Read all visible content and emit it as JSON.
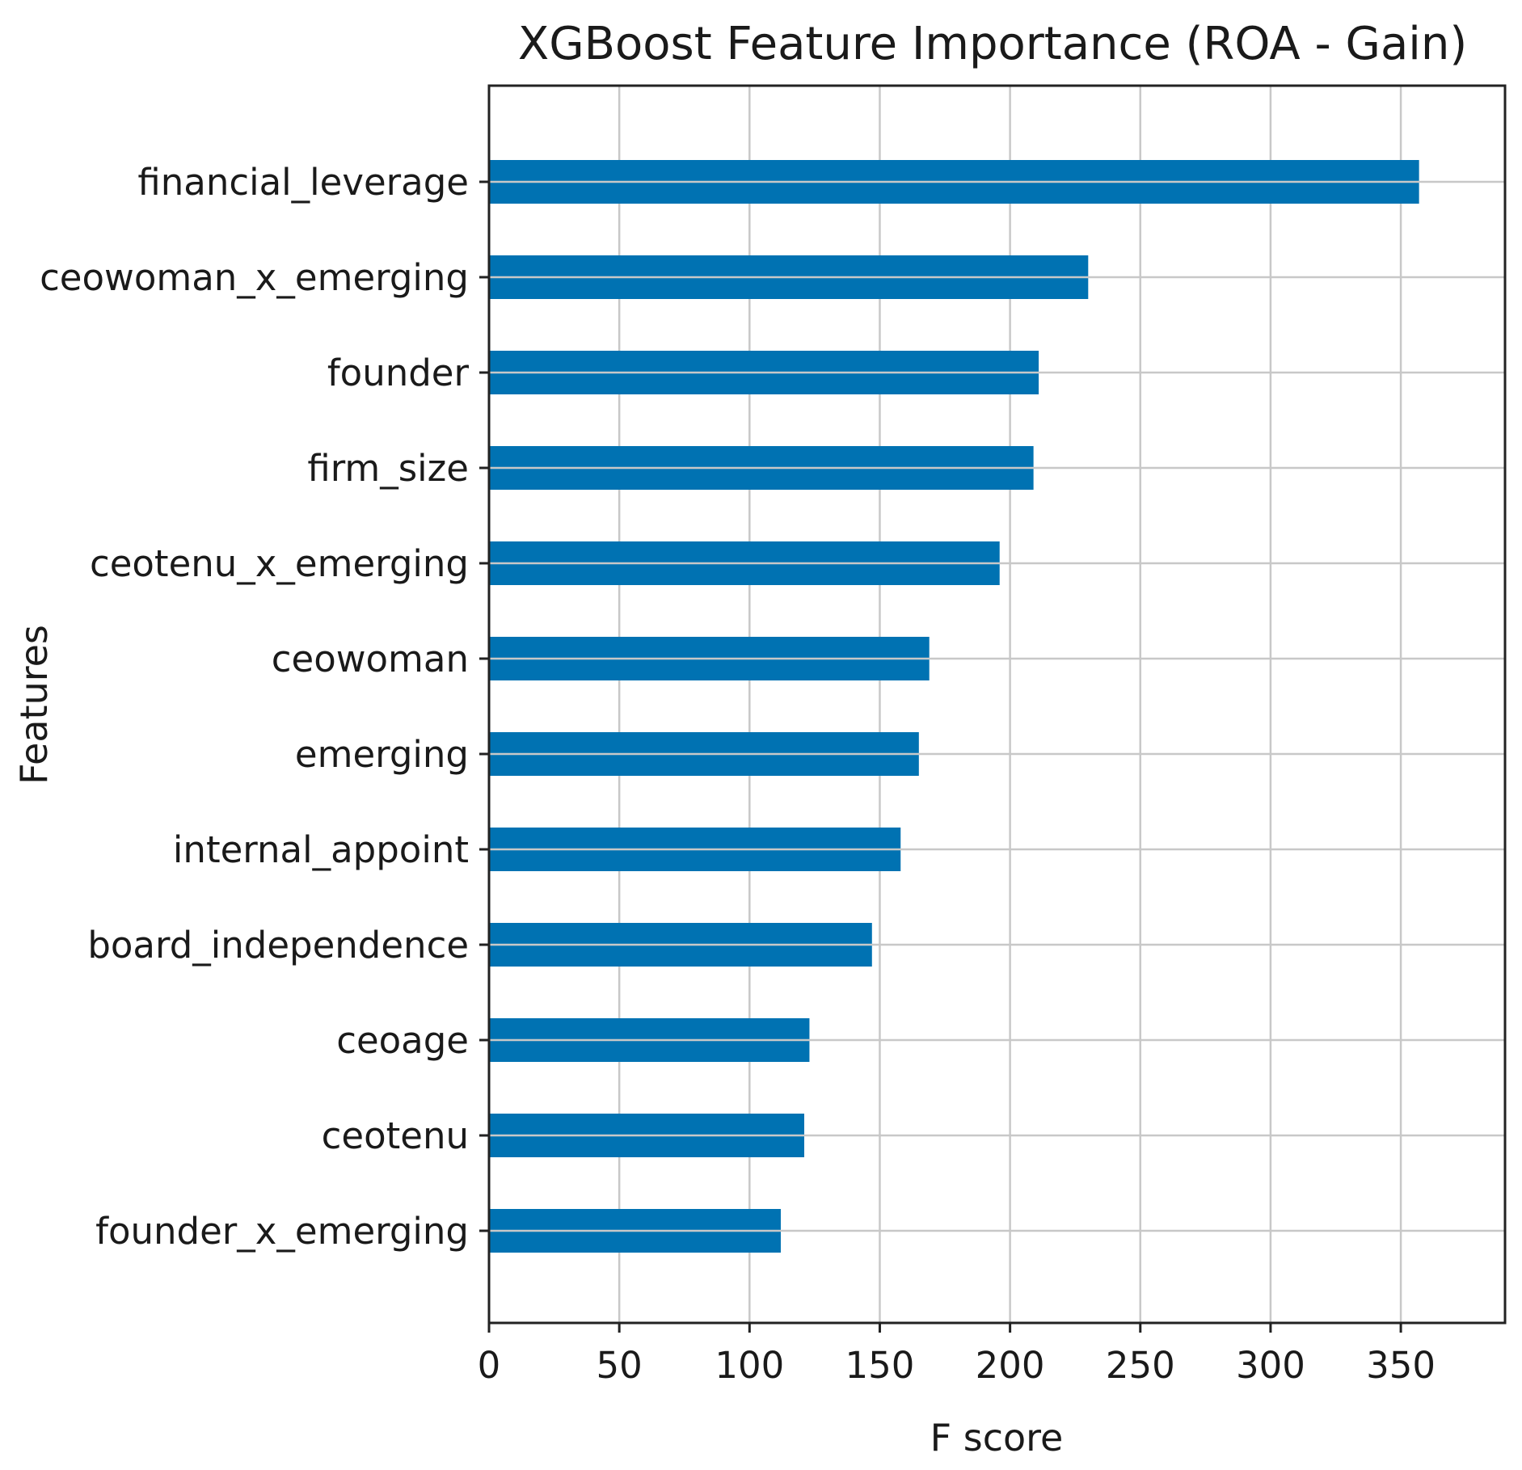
{
  "chart_data": {
    "type": "bar",
    "orientation": "horizontal",
    "title": "XGBoost Feature Importance (ROA - Gain)",
    "xlabel": "F score",
    "ylabel": "Features",
    "xlim": [
      0,
      390
    ],
    "xticks": [
      0,
      50,
      100,
      150,
      200,
      250,
      300,
      350
    ],
    "grid": true,
    "bar_color": "#0072b2",
    "categories": [
      "financial_leverage",
      "ceowoman_x_emerging",
      "founder",
      "firm_size",
      "ceotenu_x_emerging",
      "ceowoman",
      "emerging",
      "internal_appoint",
      "board_independence",
      "ceoage",
      "ceotenu",
      "founder_x_emerging"
    ],
    "values": [
      357,
      230,
      211,
      209,
      196,
      169,
      165,
      158,
      147,
      123,
      121,
      112
    ]
  }
}
